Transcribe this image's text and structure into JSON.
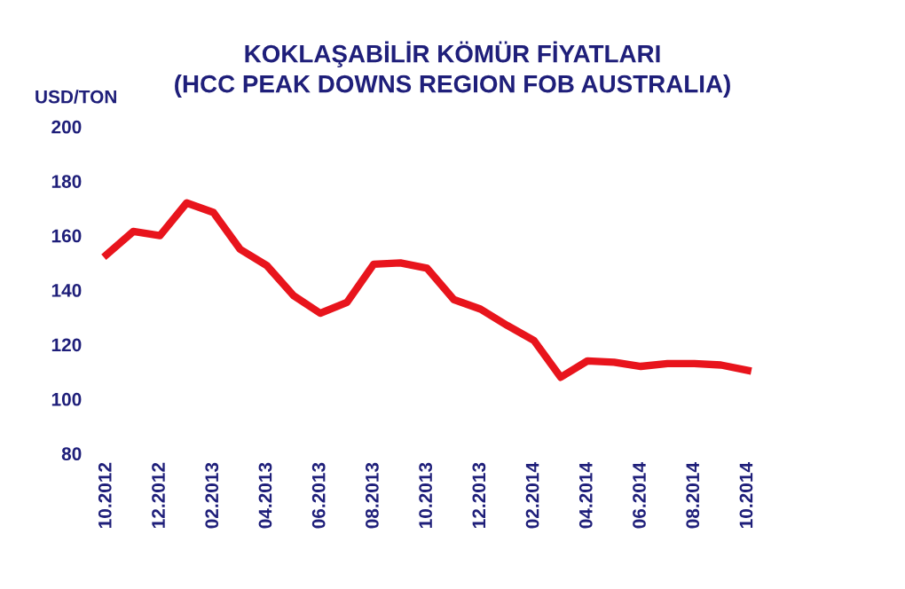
{
  "chart_data": {
    "type": "line",
    "title": "KOKLAŞABİLİR KÖMÜR FİYATLARI\n(HCC PEAK DOWNS REGION FOB AUSTRALIA)",
    "ylabel": "USD/TON",
    "categories": [
      "10.2012",
      null,
      "12.2012",
      null,
      "02.2013",
      null,
      "04.2013",
      null,
      "06.2013",
      null,
      "08.2013",
      null,
      "10.2013",
      null,
      "12.2013",
      null,
      "02.2014",
      null,
      "04.2014",
      null,
      "06.2014",
      null,
      "08.2014",
      null,
      "10.2014"
    ],
    "series": [
      {
        "color": "#e8141c",
        "values": [
          153,
          161.5,
          160,
          172,
          168.5,
          155,
          149,
          138,
          131.5,
          135.5,
          149.5,
          150,
          148,
          136.5,
          133,
          127,
          121.5,
          108,
          114,
          113.5,
          112,
          113,
          113,
          112.5,
          110.5
        ]
      }
    ],
    "ylim": [
      80,
      200
    ],
    "yticks": [
      80,
      100,
      120,
      140,
      160,
      180,
      200
    ],
    "grid": false,
    "legend": false,
    "marker": "none",
    "line_style": "solid"
  }
}
